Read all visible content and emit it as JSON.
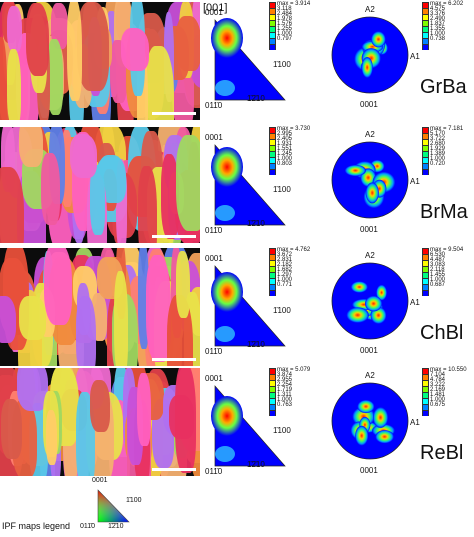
{
  "top_label": "[001]",
  "ipf_axis": {
    "top": "0001",
    "right": "1̄100",
    "bottom_left": "011̄0",
    "bottom_mid": "1̄2̄10"
  },
  "pf_axis": {
    "top": "A2",
    "right": "A1",
    "bottom": "0001"
  },
  "colorbar_colors": [
    "#ff0000",
    "#ff8000",
    "#ffff00",
    "#80ff00",
    "#00ff80",
    "#00ffff",
    "#0080ff",
    "#0000ff"
  ],
  "samples": [
    {
      "name": "GrBa",
      "ipf_max": "max = 3.914",
      "ipf_ticks": [
        "3.118",
        "2.484",
        "1.978",
        "1.576",
        "1.255",
        "1.000",
        "0.797"
      ],
      "pf_max": "max = 6.202",
      "pf_ticks": [
        "4.575",
        "3.376",
        "2.490",
        "1.837",
        "1.355",
        "1.000",
        "0.738"
      ]
    },
    {
      "name": "BrMa",
      "ipf_max": "max = 3.730",
      "ipf_ticks": [
        "2.995",
        "2.405",
        "1.931",
        "1.551",
        "1.245",
        "1.000",
        "0.803"
      ],
      "pf_max": "max = 7.181",
      "pf_ticks": [
        "5.170",
        "3.722",
        "2.680",
        "1.929",
        "1.389",
        "1.000",
        "0.720"
      ]
    },
    {
      "name": "ChBl",
      "ipf_max": "max = 4.762",
      "ipf_ticks": [
        "3.672",
        "2.831",
        "2.182",
        "1.682",
        "1.297",
        "1.000",
        "0.771"
      ],
      "pf_max": "max = 9.504",
      "pf_ticks": [
        "6.530",
        "4.487",
        "3.083",
        "2.118",
        "1.455",
        "1.000",
        "0.687"
      ]
    },
    {
      "name": "ReBl",
      "ipf_max": "max = 5.079",
      "ipf_ticks": [
        "3.874",
        "2.955",
        "2.254",
        "1.719",
        "1.311",
        "1.000",
        "0.763"
      ],
      "pf_max": "max = 10.550",
      "pf_ticks": [
        "7.104",
        "4.784",
        "3.222",
        "2.169",
        "1.481",
        "1.000",
        "0.675"
      ]
    }
  ],
  "legend": {
    "title": "IPF maps legend",
    "top": "0001",
    "right": "1̄100",
    "bottom_left": "011̄0",
    "bottom_mid": "1̄2̄10"
  }
}
